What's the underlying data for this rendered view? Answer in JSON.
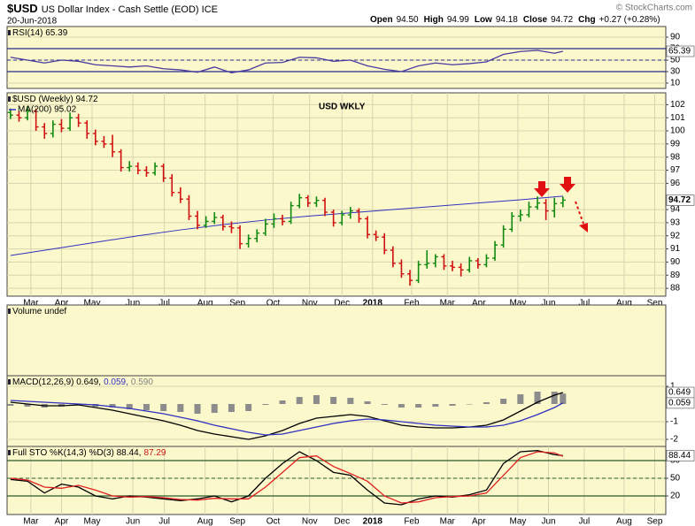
{
  "header": {
    "symbol": "$USD",
    "name": "US Dollar Index - Cash Settle (EOD) ICE",
    "date": "20-Jun-2018",
    "quote": [
      {
        "label": "Open",
        "value": "94.50"
      },
      {
        "label": "High",
        "value": "94.99"
      },
      {
        "label": "Low",
        "value": "94.18"
      },
      {
        "label": "Close",
        "value": "94.72"
      },
      {
        "label": "Chg",
        "value": "+0.27 (+0.28%)"
      }
    ],
    "credit": "© StockCharts.com"
  },
  "chart_data": [
    {
      "type": "line",
      "legend": [
        "RSI(14) 65.39"
      ],
      "legend_colors": [
        "#000000"
      ],
      "xlim": [
        -0.4,
        77.1
      ],
      "ylim": [
        0.8,
        108.5
      ],
      "yticks": [
        10,
        30,
        50,
        70,
        90
      ],
      "hlines": [
        30,
        70
      ],
      "dashed_hlines": [
        50
      ],
      "line_color": "#2a2a8a",
      "x": [
        0,
        2,
        4,
        6,
        8,
        10,
        12,
        14,
        16,
        18,
        20,
        22,
        24,
        26,
        28,
        30,
        32,
        34,
        36,
        38,
        40,
        42,
        44,
        46,
        48,
        50,
        52,
        54,
        56,
        58,
        60,
        62,
        64,
        65
      ],
      "series": [
        {
          "color": "#4a3aa0",
          "values": [
            55,
            50,
            45,
            50,
            48,
            42,
            40,
            38,
            40,
            35,
            33,
            29,
            38,
            28,
            33,
            45,
            46,
            55,
            54,
            48,
            50,
            40,
            34,
            30,
            40,
            45,
            42,
            44,
            47,
            60,
            65,
            67,
            62,
            65.39
          ]
        }
      ],
      "last_labels": [
        "65.39"
      ]
    },
    {
      "type": "ohlc",
      "legend": [
        "$USD (Weekly) 94.72"
      ],
      "legend_colors": [
        "#000000"
      ],
      "annotation": "USD WKLY",
      "xlim": [
        -0.4,
        77.1
      ],
      "ylim": [
        87.4,
        102.9
      ],
      "yticks": [
        88,
        89,
        90,
        91,
        92,
        93,
        94,
        96,
        97,
        98,
        99,
        100,
        101,
        102
      ],
      "xticks": [
        {
          "value": 2.4,
          "label": "Mar"
        },
        {
          "value": 6,
          "label": "Apr"
        },
        {
          "value": 9.6,
          "label": "May"
        },
        {
          "value": 14.4,
          "label": "Jun"
        },
        {
          "value": 18.1,
          "label": "Jul"
        },
        {
          "value": 22.9,
          "label": "Aug"
        },
        {
          "value": 26.7,
          "label": "Sep"
        },
        {
          "value": 30.9,
          "label": "Oct"
        },
        {
          "value": 35.2,
          "label": "Nov"
        },
        {
          "value": 39,
          "label": "Dec"
        },
        {
          "value": 42.6,
          "label": "2018"
        },
        {
          "value": 47.2,
          "label": "Feb"
        },
        {
          "value": 51.4,
          "label": "Mar"
        },
        {
          "value": 55.1,
          "label": "Apr"
        },
        {
          "value": 59.7,
          "label": "May"
        },
        {
          "value": 63.3,
          "label": "Jun"
        },
        {
          "value": 67.5,
          "label": "Jul"
        },
        {
          "value": 72.2,
          "label": "Aug"
        },
        {
          "value": 75.8,
          "label": "Sep"
        }
      ],
      "up_color": "#108a10",
      "down_color": "#d01010",
      "open": [
        101.4,
        101.2,
        101.0,
        101.5,
        100.3,
        99.8,
        100.5,
        100.2,
        101.0,
        100.6,
        99.8,
        99.2,
        99.0,
        98.4,
        97.2,
        97.3,
        97.0,
        96.8,
        97.3,
        96.4,
        95.3,
        94.8,
        93.5,
        92.8,
        93.1,
        93.4,
        92.7,
        92.6,
        91.4,
        91.8,
        92.2,
        92.9,
        93.3,
        93.1,
        94.3,
        94.9,
        94.5,
        94.7,
        93.8,
        93.0,
        93.6,
        93.9,
        93.3,
        92.1,
        91.9,
        90.9,
        89.9,
        89.1,
        88.6,
        89.8,
        89.9,
        90.4,
        89.7,
        89.6,
        89.4,
        90.1,
        89.8,
        90.3,
        91.3,
        92.5,
        93.5,
        93.6,
        94.2,
        94.5,
        93.9,
        94.5
      ],
      "high": [
        101.7,
        101.5,
        101.9,
        101.7,
        100.6,
        100.8,
        100.9,
        101.4,
        101.3,
        100.8,
        100.1,
        99.6,
        99.7,
        98.6,
        97.7,
        97.6,
        97.3,
        97.6,
        97.5,
        96.7,
        95.7,
        95.1,
        93.9,
        93.5,
        93.8,
        93.6,
        93.1,
        92.8,
        92.1,
        92.5,
        93.3,
        93.7,
        93.6,
        94.6,
        95.2,
        95.1,
        95.0,
        94.9,
        94.0,
        93.9,
        94.2,
        94.1,
        93.5,
        92.4,
        92.2,
        91.2,
        90.2,
        89.4,
        90.1,
        90.9,
        90.6,
        90.6,
        90.1,
        89.9,
        90.4,
        90.3,
        90.6,
        91.6,
        92.8,
        93.8,
        94.0,
        94.6,
        95.0,
        94.8,
        94.9,
        94.99
      ],
      "low": [
        100.9,
        100.7,
        100.8,
        100.0,
        99.4,
        99.5,
        99.9,
        100.0,
        100.3,
        99.4,
        98.9,
        98.7,
        98.0,
        96.9,
        96.9,
        96.7,
        96.5,
        96.6,
        96.1,
        95.0,
        94.5,
        93.2,
        92.5,
        92.6,
        92.9,
        92.4,
        92.2,
        91.0,
        91.1,
        91.5,
        92.0,
        92.6,
        92.8,
        92.9,
        94.1,
        94.2,
        94.2,
        93.5,
        92.7,
        92.8,
        93.3,
        93.0,
        91.8,
        91.6,
        90.6,
        89.6,
        88.8,
        88.2,
        88.4,
        89.5,
        89.6,
        89.4,
        89.3,
        88.9,
        89.2,
        89.5,
        89.6,
        90.1,
        91.1,
        92.3,
        93.1,
        93.4,
        94.0,
        93.2,
        93.4,
        94.18
      ],
      "close": [
        101.2,
        101.0,
        101.5,
        100.3,
        99.8,
        100.5,
        100.2,
        101.0,
        100.6,
        99.8,
        99.2,
        99.0,
        98.4,
        97.2,
        97.3,
        97.0,
        96.8,
        97.3,
        96.4,
        95.3,
        94.8,
        93.5,
        92.8,
        93.1,
        93.4,
        92.7,
        92.6,
        91.4,
        91.8,
        92.2,
        92.9,
        93.3,
        93.1,
        94.3,
        94.9,
        94.5,
        94.7,
        93.8,
        93.0,
        93.6,
        93.9,
        93.3,
        92.1,
        91.9,
        90.9,
        89.9,
        89.1,
        88.6,
        89.8,
        89.9,
        90.4,
        89.7,
        89.6,
        89.4,
        90.1,
        89.8,
        90.3,
        91.3,
        92.5,
        93.5,
        93.6,
        94.2,
        94.5,
        93.9,
        94.45,
        94.72
      ],
      "overlay": {
        "title": "MA(200) 95.02",
        "color": "#3030c0",
        "x": [
          0,
          5,
          10,
          15,
          20,
          25,
          30,
          35,
          40,
          45,
          50,
          55,
          60,
          65
        ],
        "values": [
          90.5,
          91.0,
          91.5,
          92.0,
          92.45,
          92.85,
          93.2,
          93.5,
          93.75,
          94.0,
          94.25,
          94.5,
          94.75,
          95.02
        ]
      },
      "last_labels": [
        "94.72"
      ]
    },
    {
      "type": "volume",
      "legend": [
        "Volume undef"
      ],
      "legend_colors": [
        "#000000"
      ],
      "xlim": [
        -0.4,
        77.1
      ]
    },
    {
      "type": "macd",
      "legend": [
        "MACD(12,26,9) 0.649,",
        "0.059,",
        "0.590"
      ],
      "legend_colors": [
        "#000000",
        "#3030c0",
        "#808080"
      ],
      "xlim": [
        -0.4,
        77.1
      ],
      "ylim": [
        -2.4,
        1.6
      ],
      "yticks": [
        -2,
        -1,
        1
      ],
      "x": [
        0,
        2,
        4,
        6,
        8,
        10,
        12,
        14,
        16,
        18,
        20,
        22,
        24,
        26,
        28,
        30,
        32,
        34,
        36,
        38,
        40,
        42,
        44,
        46,
        48,
        50,
        52,
        54,
        56,
        58,
        60,
        62,
        64,
        65
      ],
      "histogram": {
        "color": "#8c8c8c",
        "values": [
          -0.1,
          -0.15,
          -0.2,
          -0.15,
          -0.05,
          -0.15,
          -0.2,
          -0.3,
          -0.35,
          -0.4,
          -0.45,
          -0.55,
          -0.5,
          -0.45,
          -0.4,
          -0.05,
          0.2,
          0.4,
          0.5,
          0.4,
          0.35,
          0.15,
          -0.05,
          -0.2,
          -0.2,
          -0.15,
          -0.1,
          0.0,
          0.1,
          0.3,
          0.55,
          0.7,
          0.7,
          0.59
        ]
      },
      "series": [
        {
          "color": "#000000",
          "values": [
            0.1,
            0.0,
            -0.1,
            -0.1,
            -0.05,
            -0.2,
            -0.35,
            -0.55,
            -0.75,
            -0.95,
            -1.2,
            -1.5,
            -1.7,
            -1.85,
            -2.0,
            -1.8,
            -1.5,
            -1.1,
            -0.8,
            -0.7,
            -0.6,
            -0.7,
            -0.95,
            -1.2,
            -1.3,
            -1.35,
            -1.35,
            -1.3,
            -1.2,
            -0.9,
            -0.4,
            0.1,
            0.5,
            0.649
          ]
        },
        {
          "color": "#3030c0",
          "values": [
            0.2,
            0.15,
            0.1,
            0.05,
            0.0,
            -0.05,
            -0.15,
            -0.25,
            -0.4,
            -0.55,
            -0.75,
            -0.95,
            -1.2,
            -1.4,
            -1.6,
            -1.75,
            -1.7,
            -1.5,
            -1.3,
            -1.1,
            -0.95,
            -0.85,
            -0.9,
            -1.0,
            -1.1,
            -1.2,
            -1.25,
            -1.3,
            -1.3,
            -1.2,
            -0.95,
            -0.6,
            -0.2,
            0.059
          ]
        }
      ],
      "last_labels": [
        "0.649",
        "0.059"
      ]
    },
    {
      "type": "line",
      "legend": [
        "Full STO %K(14,3) %D(3) 88.44,",
        "87.29"
      ],
      "legend_colors": [
        "#000000",
        "#d01010"
      ],
      "xlim": [
        -0.4,
        77.1
      ],
      "ylim": [
        -11.5,
        104
      ],
      "yticks": [
        20,
        50,
        80
      ],
      "hlines": [
        20,
        80
      ],
      "dashed_hlines": [
        50
      ],
      "line_color": "#2a5a2a",
      "xticks": [
        {
          "value": 2.4,
          "label": "Mar"
        },
        {
          "value": 6,
          "label": "Apr"
        },
        {
          "value": 9.6,
          "label": "May"
        },
        {
          "value": 14.4,
          "label": "Jun"
        },
        {
          "value": 18.1,
          "label": "Jul"
        },
        {
          "value": 22.9,
          "label": "Aug"
        },
        {
          "value": 26.7,
          "label": "Sep"
        },
        {
          "value": 30.9,
          "label": "Oct"
        },
        {
          "value": 35.2,
          "label": "Nov"
        },
        {
          "value": 39,
          "label": "Dec"
        },
        {
          "value": 42.6,
          "label": "2018"
        },
        {
          "value": 47.2,
          "label": "Feb"
        },
        {
          "value": 51.4,
          "label": "Mar"
        },
        {
          "value": 55.1,
          "label": "Apr"
        },
        {
          "value": 59.7,
          "label": "May"
        },
        {
          "value": 63.3,
          "label": "Jun"
        },
        {
          "value": 67.5,
          "label": "Jul"
        },
        {
          "value": 72.2,
          "label": "Aug"
        },
        {
          "value": 75.8,
          "label": "Sep"
        }
      ],
      "x": [
        0,
        2,
        4,
        6,
        8,
        10,
        12,
        14,
        16,
        18,
        20,
        22,
        24,
        26,
        28,
        30,
        32,
        34,
        36,
        38,
        40,
        42,
        44,
        46,
        48,
        50,
        52,
        54,
        56,
        58,
        60,
        62,
        64,
        65
      ],
      "series": [
        {
          "color": "#000000",
          "values": [
            48,
            45,
            25,
            40,
            35,
            20,
            15,
            20,
            18,
            15,
            12,
            15,
            20,
            10,
            20,
            50,
            75,
            95,
            80,
            60,
            55,
            30,
            8,
            5,
            15,
            20,
            18,
            22,
            30,
            75,
            95,
            97,
            90,
            88.44
          ]
        },
        {
          "color": "#e02020",
          "values": [
            50,
            47,
            35,
            33,
            38,
            30,
            20,
            18,
            19,
            17,
            14,
            13,
            16,
            15,
            15,
            35,
            60,
            85,
            88,
            70,
            58,
            45,
            20,
            8,
            10,
            17,
            19,
            20,
            25,
            55,
            85,
            95,
            93,
            87.29
          ]
        }
      ],
      "last_labels": [
        "88.44"
      ]
    }
  ]
}
